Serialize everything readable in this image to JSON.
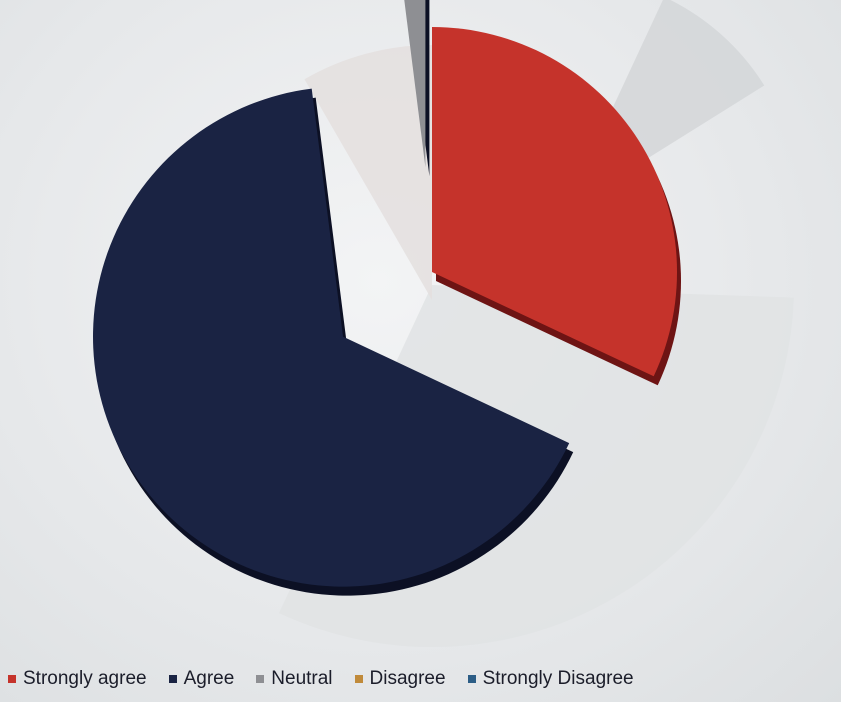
{
  "chart_data": {
    "type": "pie",
    "title": "",
    "series": [
      {
        "name": "Strongly agree",
        "value": 32,
        "color": "#c5332b"
      },
      {
        "name": "Agree",
        "value": 66,
        "color": "#1a2343"
      },
      {
        "name": "Neutral",
        "value": 2,
        "color": "#8e8f93"
      },
      {
        "name": "Disagree",
        "value": 0,
        "color": "#c08a3a"
      },
      {
        "name": "Strongly Disagree",
        "value": 0,
        "color": "#2c5d86"
      }
    ],
    "legend_position": "bottom"
  }
}
